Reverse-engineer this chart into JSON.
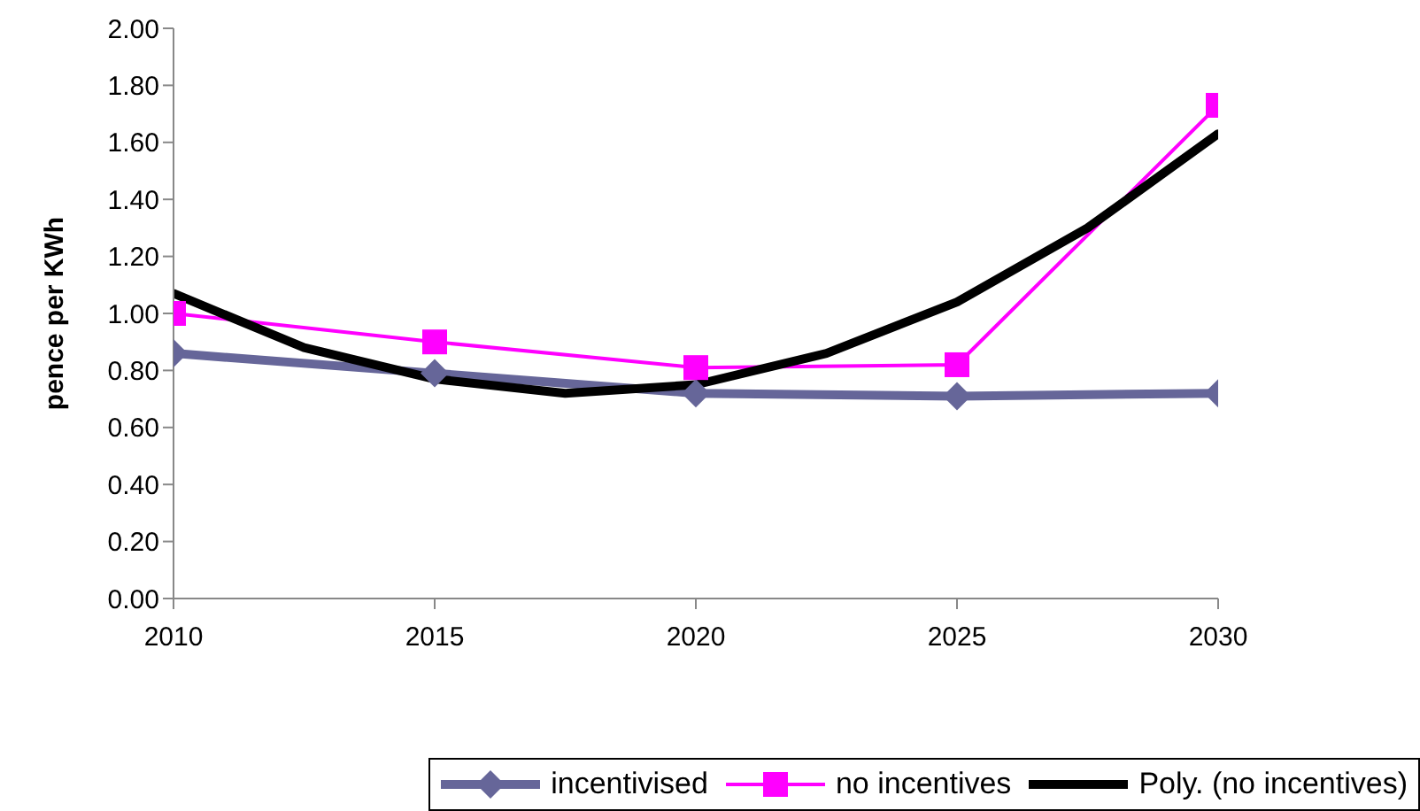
{
  "chart_data": {
    "type": "line",
    "ylabel": "pence per KWh",
    "x": [
      2010,
      2015,
      2020,
      2025,
      2030
    ],
    "xlim": [
      2010,
      2030
    ],
    "xticks": [
      2010,
      2015,
      2020,
      2025,
      2030
    ],
    "ylim": [
      0,
      2
    ],
    "yticks": [
      {
        "value": 0,
        "label": "0.00"
      },
      {
        "value": 0.2,
        "label": "0.20"
      },
      {
        "value": 0.4,
        "label": "0.40"
      },
      {
        "value": 0.6,
        "label": "0.60"
      },
      {
        "value": 0.8,
        "label": "0.80"
      },
      {
        "value": 1,
        "label": "1.00"
      },
      {
        "value": 1.2,
        "label": "1.20"
      },
      {
        "value": 1.4,
        "label": "1.40"
      },
      {
        "value": 1.6,
        "label": "1.60"
      },
      {
        "value": 1.8,
        "label": "1.80"
      },
      {
        "value": 2,
        "label": "2.00"
      }
    ],
    "grid": false,
    "legend": "bottom right",
    "series": [
      {
        "name": "incentivised",
        "color": "#666699",
        "marker": "diamond",
        "values": [
          0.86,
          0.79,
          0.72,
          0.71,
          0.72
        ]
      },
      {
        "name": "no incentives",
        "color": "#ff00ff",
        "marker": "square",
        "values": [
          1.0,
          0.9,
          0.81,
          0.82,
          1.73
        ]
      },
      {
        "name": "Poly. (no incentives)",
        "color": "#000000",
        "marker": "none",
        "x": [
          2010,
          2012.5,
          2015,
          2017.5,
          2020,
          2022.5,
          2025,
          2027.5,
          2030
        ],
        "values": [
          1.07,
          0.88,
          0.77,
          0.72,
          0.75,
          0.86,
          1.04,
          1.3,
          1.63
        ]
      }
    ]
  }
}
